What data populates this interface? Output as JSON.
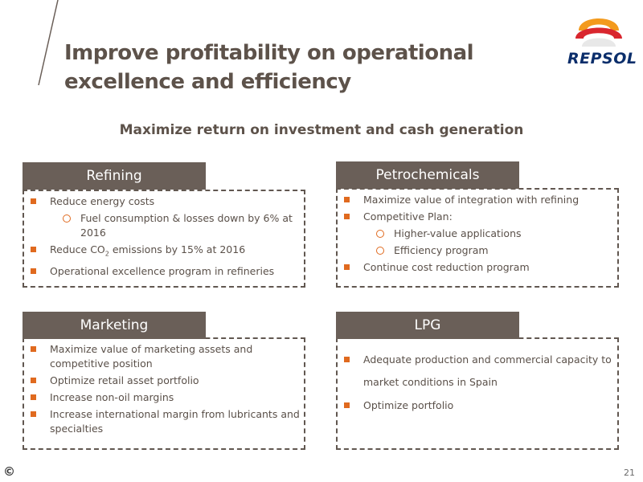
{
  "title": "Improve profitability on operational excellence and efficiency",
  "logo": {
    "text": "REPSOL",
    "colors": {
      "orange": "#f39a1d",
      "red": "#d9262e",
      "navy": "#0b2e6b"
    }
  },
  "subtitle": "Maximize return on investment and cash generation",
  "accent_color": "#e06a1f",
  "tab_color": "#6a5f58",
  "panels": {
    "refining": {
      "title": "Refining",
      "items": [
        {
          "text": "Reduce energy costs",
          "level": 1
        },
        {
          "text": "Fuel consumption & losses down by 6% at 2016",
          "level": 2
        },
        {
          "text_before": "Reduce CO",
          "sub": "2",
          "text_after": " emissions by 15% at 2016",
          "level": 1
        },
        {
          "text": "Operational excellence program  in refineries",
          "level": 1
        }
      ]
    },
    "petrochemicals": {
      "title": "Petrochemicals",
      "items": [
        {
          "text": "Maximize value of integration with refining",
          "level": 1
        },
        {
          "text": "Competitive Plan:",
          "level": 1
        },
        {
          "text": "Higher-value applications",
          "level": 2
        },
        {
          "text": "Efficiency program",
          "level": 2
        },
        {
          "text": "Continue cost reduction program",
          "level": 1
        }
      ]
    },
    "marketing": {
      "title": "Marketing",
      "items": [
        {
          "text": "Maximize value of marketing assets and competitive position",
          "level": 1
        },
        {
          "text": "Optimize retail asset portfolio",
          "level": 1
        },
        {
          "text": "Increase non-oil margins",
          "level": 1
        },
        {
          "text": "Increase international margin from lubricants and specialties",
          "level": 1
        }
      ]
    },
    "lpg": {
      "title": "LPG",
      "items": [
        {
          "text": "Adequate production and commercial capacity to market conditions in Spain",
          "level": 1
        },
        {
          "text": "Optimize portfolio",
          "level": 1
        }
      ]
    }
  },
  "footer": {
    "copyright": "©",
    "page_number": "21"
  }
}
